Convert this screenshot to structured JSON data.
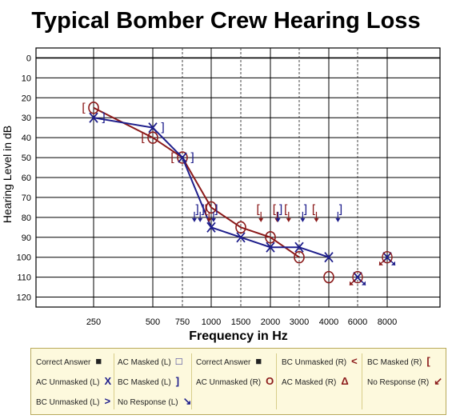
{
  "chart_data": {
    "type": "line",
    "title": "Typical Bomber Crew Hearing Loss",
    "xlabel": "Frequency in Hz",
    "ylabel": "Hearing Level in dB",
    "x_ticks": [
      250,
      500,
      750,
      1000,
      1500,
      2000,
      3000,
      4000,
      6000,
      8000
    ],
    "y_ticks": [
      0,
      10,
      20,
      30,
      40,
      50,
      60,
      70,
      80,
      90,
      100,
      110,
      120
    ],
    "ylim": [
      -5,
      125
    ],
    "y_inverted": true,
    "grid": true,
    "series": [
      {
        "color": "#8b1a1a",
        "points": [
          {
            "x": 250,
            "y": 25
          },
          {
            "x": 500,
            "y": 40
          },
          {
            "x": 750,
            "y": 50
          },
          {
            "x": 1000,
            "y": 75
          },
          {
            "x": 1500,
            "y": 85
          },
          {
            "x": 2000,
            "y": 90
          },
          {
            "x": 3000,
            "y": 100
          }
        ]
      },
      {
        "color": "#1f1f8c",
        "points": [
          {
            "x": 250,
            "y": 30
          },
          {
            "x": 500,
            "y": 35
          },
          {
            "x": 750,
            "y": 50
          },
          {
            "x": 1000,
            "y": 85
          },
          {
            "x": 1500,
            "y": 90
          },
          {
            "x": 2000,
            "y": 95
          },
          {
            "x": 3000,
            "y": 95
          },
          {
            "x": 4000,
            "y": 100
          }
        ]
      }
    ],
    "extra_marks": [
      {
        "symbol": "[",
        "x": 250,
        "y": 25,
        "color": "#8b1a1a"
      },
      {
        "symbol": "]",
        "x": 250,
        "y": 30,
        "color": "#1f1f8c"
      },
      {
        "symbol": "[",
        "x": 500,
        "y": 40,
        "color": "#8b1a1a"
      },
      {
        "symbol": "]",
        "x": 500,
        "y": 35,
        "color": "#1f1f8c"
      },
      {
        "symbol": "[",
        "x": 750,
        "y": 50,
        "color": "#8b1a1a"
      },
      {
        "symbol": "]",
        "x": 750,
        "y": 50,
        "color": "#1f1f8c"
      },
      {
        "symbol": "O",
        "x": 4000,
        "y": 110,
        "color": "#8b1a1a"
      },
      {
        "symbol": "noresp-X",
        "x": 6000,
        "y": 110,
        "color": "#1f1f8c"
      },
      {
        "symbol": "noresp-O",
        "x": 6000,
        "y": 110,
        "color": "#8b1a1a"
      },
      {
        "symbol": "noresp-X",
        "x": 8000,
        "y": 100,
        "color": "#1f1f8c"
      },
      {
        "symbol": "noresp-O",
        "x": 8000,
        "y": 100,
        "color": "#8b1a1a"
      }
    ],
    "bc_no_response_marks": [
      {
        "symbol": "]",
        "x": 875,
        "y": 78,
        "color": "#1f1f8c"
      },
      {
        "symbol": "]",
        "x": 925,
        "y": 78,
        "color": "#1f1f8c"
      },
      {
        "symbol": "[",
        "x": 960,
        "y": 78,
        "color": "#8b1a1a"
      },
      {
        "symbol": "]",
        "x": 1080,
        "y": 78,
        "color": "#1f1f8c"
      },
      {
        "symbol": "[",
        "x": 1800,
        "y": 78,
        "color": "#8b1a1a"
      },
      {
        "symbol": "[",
        "x": 2150,
        "y": 78,
        "color": "#8b1a1a"
      },
      {
        "symbol": "]",
        "x": 2350,
        "y": 78,
        "color": "#1f1f8c"
      },
      {
        "symbol": "[",
        "x": 2550,
        "y": 78,
        "color": "#8b1a1a"
      },
      {
        "symbol": "]",
        "x": 3200,
        "y": 78,
        "color": "#1f1f8c"
      },
      {
        "symbol": "[",
        "x": 3500,
        "y": 78,
        "color": "#8b1a1a"
      },
      {
        "symbol": "]",
        "x": 4800,
        "y": 78,
        "color": "#1f1f8c"
      }
    ]
  },
  "legend": {
    "rows": [
      [
        {
          "label": "Correct Answer",
          "symbol": "■",
          "color": "#222222"
        },
        {
          "label": "AC Masked (L)",
          "symbol": "□",
          "color": "#1f1f8c"
        },
        {
          "label": "Correct Answer",
          "symbol": "■",
          "color": "#222222"
        },
        {
          "label": "BC Unmasked (R)",
          "symbol": "<",
          "color": "#8b1a1a"
        },
        {
          "label": "BC Masked (R)",
          "symbol": "[",
          "color": "#8b1a1a"
        }
      ],
      [
        {
          "label": "AC Unmasked (L)",
          "symbol": "X",
          "color": "#1f1f8c"
        },
        {
          "label": "BC Masked (L)",
          "symbol": "]",
          "color": "#1f1f8c"
        },
        {
          "label": "AC Unmasked (R)",
          "symbol": "O",
          "color": "#8b1a1a"
        },
        {
          "label": "AC Masked (R)",
          "symbol": "Δ",
          "color": "#8b1a1a"
        },
        {
          "label": "No Response (R)",
          "symbol": "↙",
          "color": "#8b1a1a"
        }
      ],
      [
        {
          "label": "BC Unmasked (L)",
          "symbol": ">",
          "color": "#1f1f8c"
        },
        {
          "label": "No Response (L)",
          "symbol": "↘",
          "color": "#1f1f8c"
        }
      ]
    ]
  }
}
